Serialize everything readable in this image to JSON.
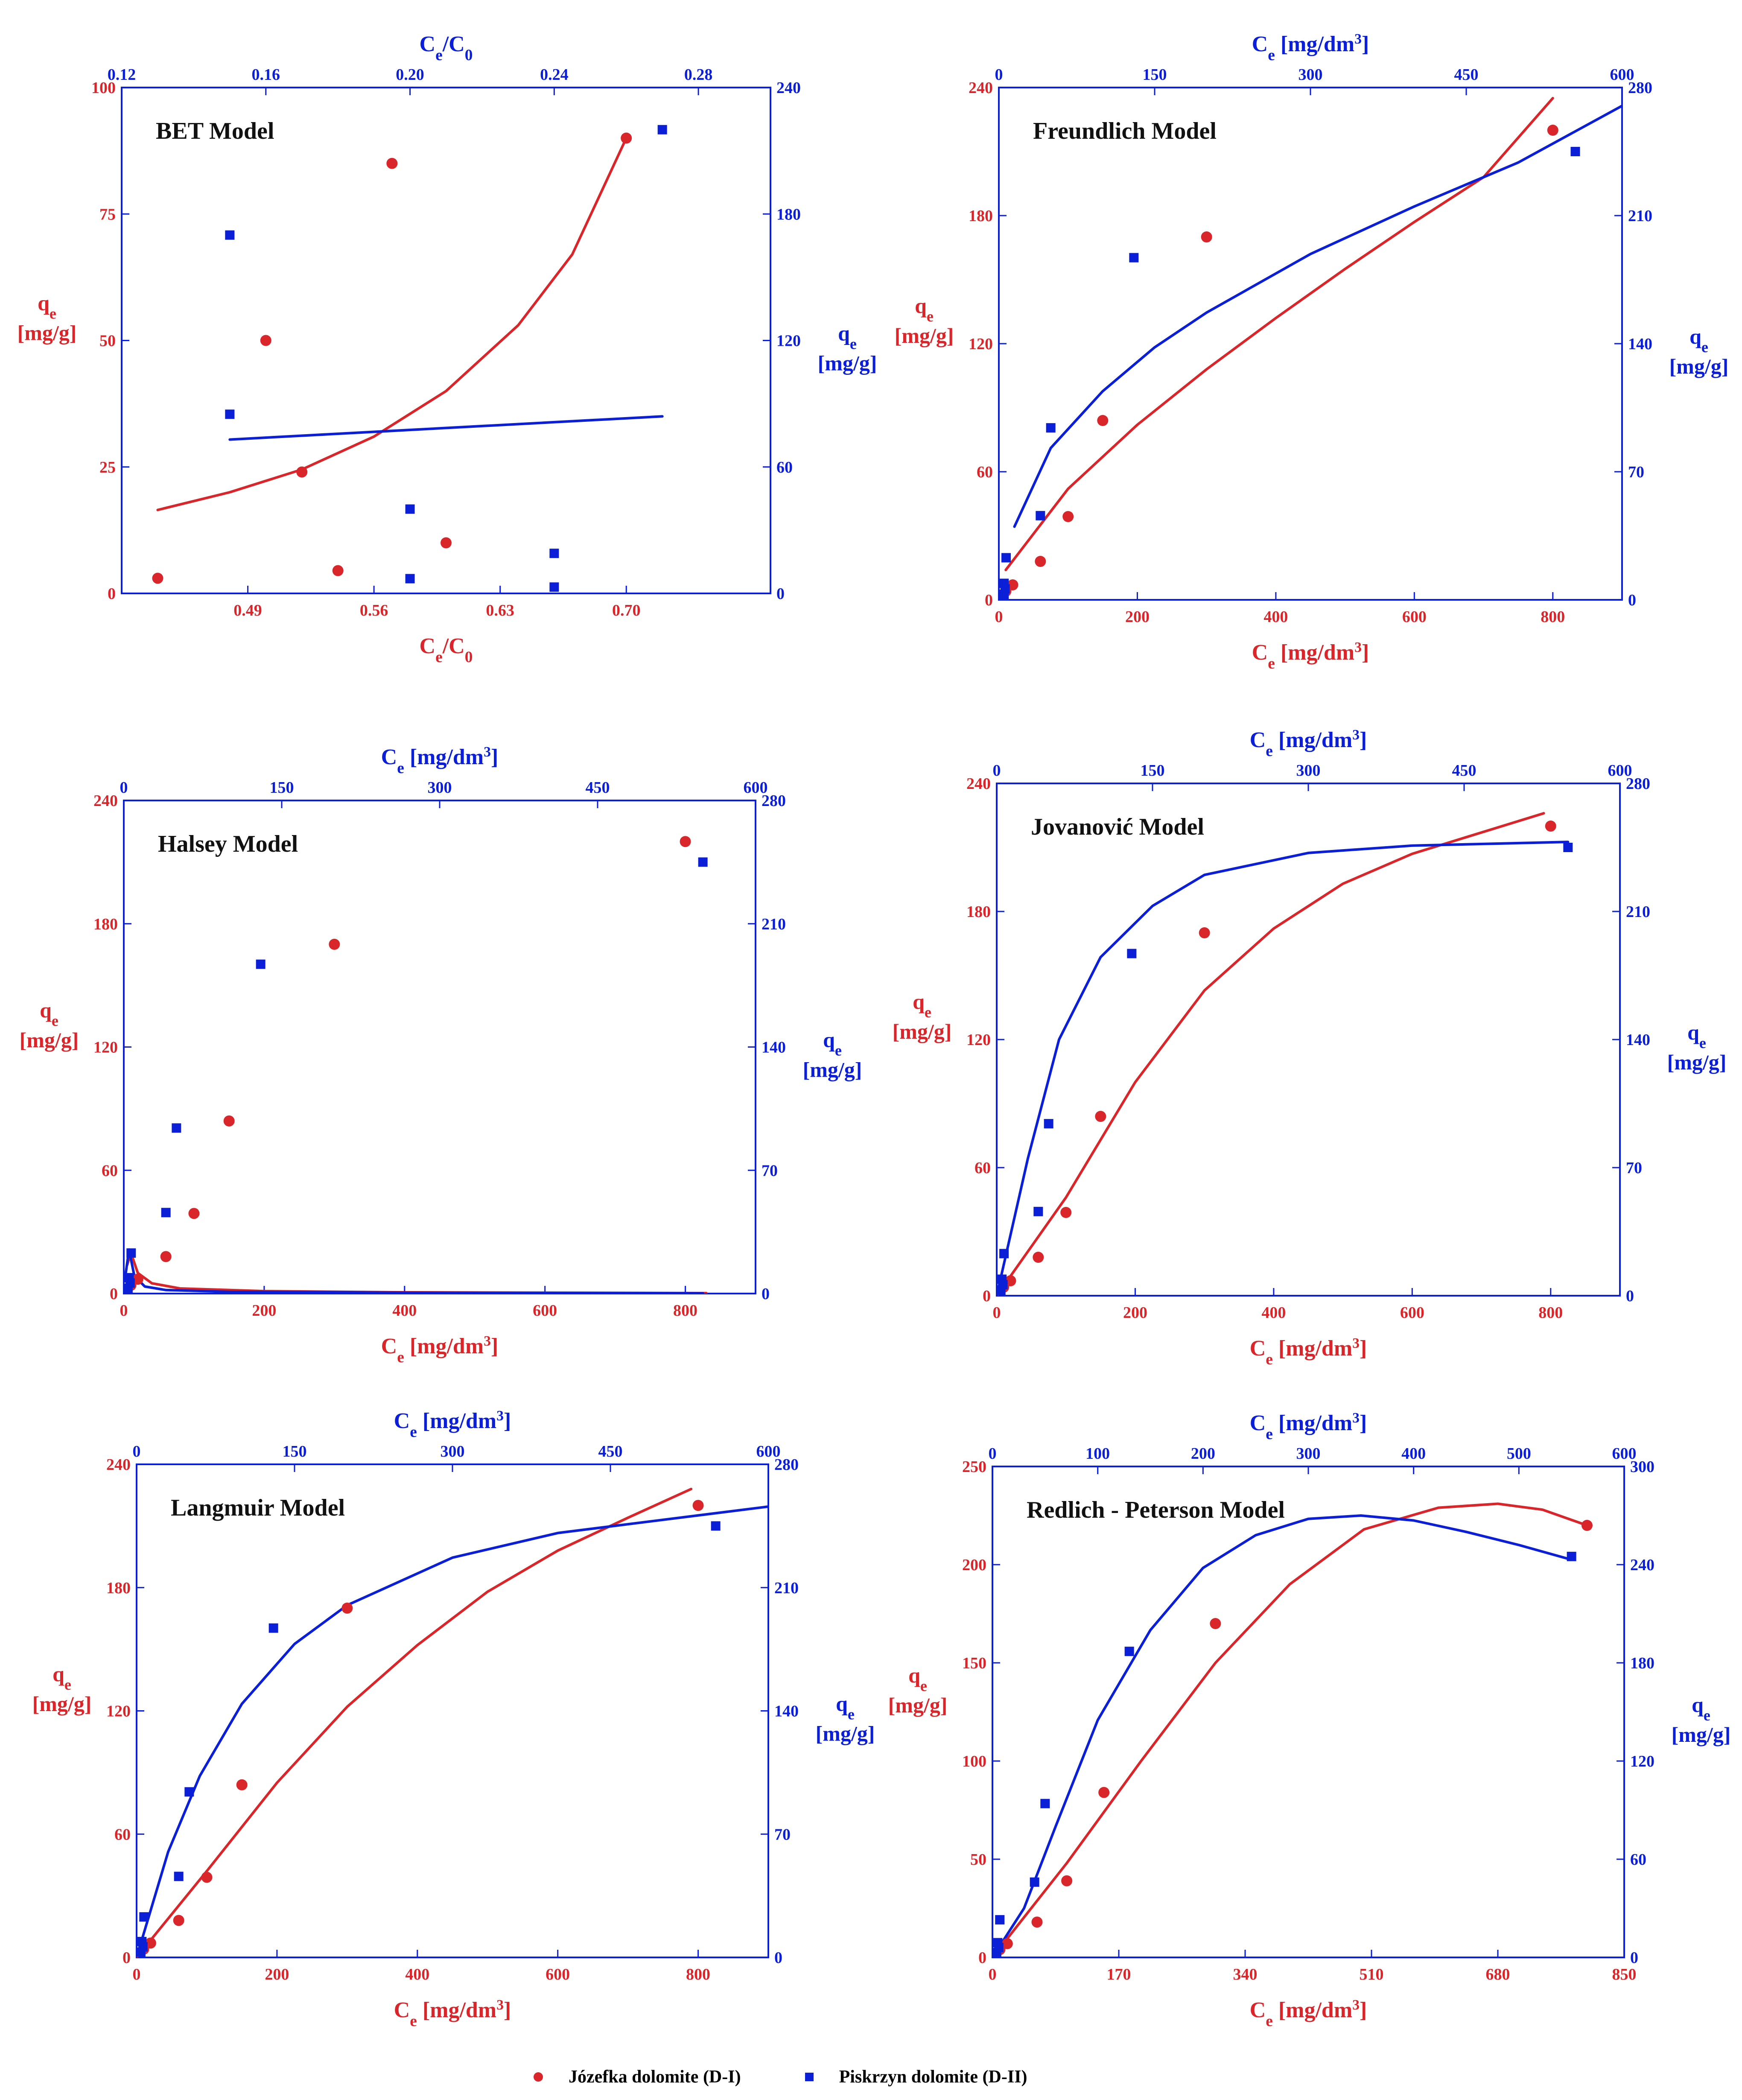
{
  "colors": {
    "red": "#d9262b",
    "blue": "#0b1fd6",
    "frame": "#0b1fd6"
  },
  "legend": {
    "series_1": "Józefka dolomite (D-I)",
    "series_2": "Piskrzyn dolomite (D-II)"
  },
  "chart_data": [
    {
      "id": "bet",
      "type": "scatter",
      "title": "BET Model",
      "xlabel_bottom": "Ce/C0",
      "xlabel_top": "Ce/C0",
      "ylabel_left": "qe [mg/g]",
      "ylabel_right": "qe [mg/g]",
      "x_bottom": {
        "range": [
          0.42,
          0.78
        ],
        "ticks": [
          0.49,
          0.56,
          0.63,
          0.7
        ],
        "tick_labels": [
          "0.49",
          "0.56",
          "0.63",
          "0.70"
        ]
      },
      "x_top": {
        "range": [
          0.12,
          0.3
        ],
        "ticks": [
          0.12,
          0.16,
          0.2,
          0.24,
          0.28
        ],
        "tick_labels": [
          "0.12",
          "0.16",
          "0.20",
          "0.24",
          "0.28"
        ]
      },
      "y_left": {
        "range": [
          0,
          100
        ],
        "ticks": [
          0,
          25,
          50,
          75,
          100
        ],
        "tick_labels": [
          "0",
          "25",
          "50",
          "75",
          "100"
        ]
      },
      "y_right": {
        "range": [
          0,
          240
        ],
        "ticks": [
          0,
          60,
          120,
          180,
          240
        ],
        "tick_labels": [
          "0",
          "60",
          "120",
          "180",
          "240"
        ]
      },
      "series": [
        {
          "name": "Józefka dolomite (D-I)",
          "axis": "bottom-left",
          "marker": "circle",
          "color": "#d9262b",
          "x": [
            0.44,
            0.5,
            0.52,
            0.54,
            0.57,
            0.6,
            0.7
          ],
          "y": [
            3,
            50,
            24,
            4.5,
            85,
            10,
            90
          ]
        },
        {
          "name": "Piskrzyn dolomite (D-II)",
          "axis": "top-right",
          "marker": "square",
          "color": "#0b1fd6",
          "x": [
            0.15,
            0.15,
            0.2,
            0.2,
            0.24,
            0.24,
            0.27
          ],
          "y": [
            170,
            85,
            40,
            7,
            19,
            3,
            220
          ]
        }
      ],
      "fits": [
        {
          "axis": "bottom-left",
          "color": "#d9262b",
          "x": [
            0.44,
            0.48,
            0.52,
            0.56,
            0.6,
            0.64,
            0.67,
            0.7
          ],
          "y": [
            16.5,
            20,
            24.5,
            31,
            40,
            53,
            67,
            90
          ]
        },
        {
          "axis": "top-right",
          "color": "#0b1fd6",
          "x": [
            0.15,
            0.27
          ],
          "y": [
            73,
            84
          ]
        }
      ]
    },
    {
      "id": "freundlich",
      "type": "scatter",
      "title": "Freundlich Model",
      "xlabel_bottom": "Ce [mg/dm3]",
      "xlabel_top": "Ce [mg/dm3]",
      "ylabel_left": "qe [mg/g]",
      "ylabel_right": "qe [mg/g]",
      "x_bottom": {
        "range": [
          0,
          900
        ],
        "ticks": [
          0,
          200,
          400,
          600,
          800
        ],
        "tick_labels": [
          "0",
          "200",
          "400",
          "600",
          "800"
        ]
      },
      "x_top": {
        "range": [
          0,
          600
        ],
        "ticks": [
          0,
          150,
          300,
          450,
          600
        ],
        "tick_labels": [
          "0",
          "150",
          "300",
          "450",
          "600"
        ]
      },
      "y_left": {
        "range": [
          0,
          240
        ],
        "ticks": [
          0,
          60,
          120,
          180,
          240
        ],
        "tick_labels": [
          "0",
          "60",
          "120",
          "180",
          "240"
        ]
      },
      "y_right": {
        "range": [
          0,
          280
        ],
        "ticks": [
          0,
          70,
          140,
          210,
          280
        ],
        "tick_labels": [
          "0",
          "70",
          "140",
          "210",
          "280"
        ]
      },
      "series": [
        {
          "name": "Józefka dolomite (D-I)",
          "axis": "bottom-left",
          "marker": "circle",
          "color": "#d9262b",
          "x": [
            10,
            20,
            60,
            100,
            150,
            300,
            800
          ],
          "y": [
            4,
            7,
            18,
            39,
            84,
            170,
            220
          ]
        },
        {
          "name": "Piskrzyn dolomite (D-II)",
          "axis": "top-right",
          "marker": "square",
          "color": "#0b1fd6",
          "x": [
            5,
            5,
            6,
            7,
            40,
            50,
            130,
            555
          ],
          "y": [
            3,
            9,
            6,
            23,
            46,
            94,
            187,
            245
          ]
        }
      ],
      "fits": [
        {
          "axis": "bottom-left",
          "color": "#d9262b",
          "x": [
            10,
            100,
            200,
            300,
            400,
            500,
            600,
            700,
            800
          ],
          "y": [
            14,
            52,
            82,
            108,
            132,
            155,
            177,
            198,
            235
          ]
        },
        {
          "axis": "top-right",
          "color": "#0b1fd6",
          "x": [
            15,
            50,
            100,
            150,
            200,
            300,
            400,
            500,
            600
          ],
          "y": [
            40,
            83,
            114,
            138,
            157,
            189,
            215,
            239,
            270
          ]
        }
      ]
    },
    {
      "id": "halsey",
      "type": "scatter",
      "title": "Halsey Model",
      "xlabel_bottom": "Ce [mg/dm3]",
      "xlabel_top": "Ce [mg/dm3]",
      "ylabel_left": "qe [mg/g]",
      "ylabel_right": "qe [mg/g]",
      "x_bottom": {
        "range": [
          0,
          900
        ],
        "ticks": [
          0,
          200,
          400,
          600,
          800
        ],
        "tick_labels": [
          "0",
          "200",
          "400",
          "600",
          "800"
        ]
      },
      "x_top": {
        "range": [
          0,
          600
        ],
        "ticks": [
          0,
          150,
          300,
          450,
          600
        ],
        "tick_labels": [
          "0",
          "150",
          "300",
          "450",
          "600"
        ]
      },
      "y_left": {
        "range": [
          0,
          240
        ],
        "ticks": [
          0,
          60,
          120,
          180,
          240
        ],
        "tick_labels": [
          "0",
          "60",
          "120",
          "180",
          "240"
        ]
      },
      "y_right": {
        "range": [
          0,
          280
        ],
        "ticks": [
          0,
          70,
          140,
          210,
          280
        ],
        "tick_labels": [
          "0",
          "70",
          "140",
          "210",
          "280"
        ]
      },
      "series": [
        {
          "name": "Józefka dolomite (D-I)",
          "axis": "bottom-left",
          "marker": "circle",
          "color": "#d9262b",
          "x": [
            10,
            20,
            60,
            100,
            150,
            300,
            800
          ],
          "y": [
            4,
            7,
            18,
            39,
            84,
            170,
            220
          ]
        },
        {
          "name": "Piskrzyn dolomite (D-II)",
          "axis": "top-right",
          "marker": "square",
          "color": "#0b1fd6",
          "x": [
            4,
            5,
            6,
            7,
            40,
            50,
            130,
            550
          ],
          "y": [
            3,
            9,
            6,
            23,
            46,
            94,
            187,
            245
          ]
        }
      ],
      "fits": [
        {
          "axis": "bottom-left",
          "color": "#d9262b",
          "x": [
            5,
            10,
            20,
            40,
            80,
            200,
            400,
            830
          ],
          "y": [
            14,
            20,
            10,
            5,
            2.5,
            1.2,
            0.6,
            0.2
          ]
        },
        {
          "axis": "top-right",
          "color": "#0b1fd6",
          "x": [
            2,
            5,
            10,
            20,
            40,
            100,
            300,
            550
          ],
          "y": [
            12,
            25,
            10,
            4,
            2,
            1,
            0.4,
            0.2
          ]
        }
      ]
    },
    {
      "id": "jovanovic",
      "type": "scatter",
      "title": "Jovanović Model",
      "xlabel_bottom": "Ce [mg/dm3]",
      "xlabel_top": "Ce [mg/dm3]",
      "ylabel_left": "qe [mg/g]",
      "ylabel_right": "qe [mg/g]",
      "x_bottom": {
        "range": [
          0,
          900
        ],
        "ticks": [
          0,
          200,
          400,
          600,
          800
        ],
        "tick_labels": [
          "0",
          "200",
          "400",
          "600",
          "800"
        ]
      },
      "x_top": {
        "range": [
          0,
          600
        ],
        "ticks": [
          0,
          150,
          300,
          450,
          600
        ],
        "tick_labels": [
          "0",
          "150",
          "300",
          "450",
          "600"
        ]
      },
      "y_left": {
        "range": [
          0,
          240
        ],
        "ticks": [
          0,
          60,
          120,
          180,
          240
        ],
        "tick_labels": [
          "0",
          "60",
          "120",
          "180",
          "240"
        ]
      },
      "y_right": {
        "range": [
          0,
          280
        ],
        "ticks": [
          0,
          70,
          140,
          210,
          280
        ],
        "tick_labels": [
          "0",
          "70",
          "140",
          "210",
          "280"
        ]
      },
      "series": [
        {
          "name": "Józefka dolomite (D-I)",
          "axis": "bottom-left",
          "marker": "circle",
          "color": "#d9262b",
          "x": [
            10,
            20,
            60,
            100,
            150,
            300,
            800
          ],
          "y": [
            4,
            7,
            18,
            39,
            84,
            170,
            220
          ]
        },
        {
          "name": "Piskrzyn dolomite (D-II)",
          "axis": "top-right",
          "marker": "square",
          "color": "#0b1fd6",
          "x": [
            4,
            5,
            6,
            7,
            40,
            50,
            130,
            550
          ],
          "y": [
            3,
            9,
            6,
            23,
            46,
            94,
            187,
            245
          ]
        }
      ],
      "fits": [
        {
          "axis": "bottom-left",
          "color": "#d9262b",
          "x": [
            0,
            100,
            200,
            300,
            400,
            500,
            600,
            700,
            790
          ],
          "y": [
            0,
            46,
            100,
            143,
            172,
            193,
            207,
            217,
            226
          ]
        },
        {
          "axis": "top-right",
          "color": "#0b1fd6",
          "x": [
            0,
            30,
            60,
            100,
            150,
            200,
            300,
            400,
            550
          ],
          "y": [
            0,
            75,
            140,
            185,
            213,
            230,
            242,
            246,
            248
          ]
        }
      ]
    },
    {
      "id": "langmuir",
      "type": "scatter",
      "title": "Langmuir Model",
      "xlabel_bottom": "Ce [mg/dm3]",
      "xlabel_top": "Ce [mg/dm3]",
      "ylabel_left": "qe [mg/g]",
      "ylabel_right": "qe [mg/g]",
      "x_bottom": {
        "range": [
          0,
          900
        ],
        "ticks": [
          0,
          200,
          400,
          600,
          800
        ],
        "tick_labels": [
          "0",
          "200",
          "400",
          "600",
          "800"
        ]
      },
      "x_top": {
        "range": [
          0,
          600
        ],
        "ticks": [
          0,
          150,
          300,
          450,
          600
        ],
        "tick_labels": [
          "0",
          "150",
          "300",
          "450",
          "600"
        ]
      },
      "y_left": {
        "range": [
          0,
          240
        ],
        "ticks": [
          0,
          60,
          120,
          180,
          240
        ],
        "tick_labels": [
          "0",
          "60",
          "120",
          "180",
          "240"
        ]
      },
      "y_right": {
        "range": [
          0,
          280
        ],
        "ticks": [
          0,
          70,
          140,
          210,
          280
        ],
        "tick_labels": [
          "0",
          "70",
          "140",
          "210",
          "280"
        ]
      },
      "series": [
        {
          "name": "Józefka dolomite (D-I)",
          "axis": "bottom-left",
          "marker": "circle",
          "color": "#d9262b",
          "x": [
            10,
            20,
            60,
            100,
            150,
            300,
            800
          ],
          "y": [
            4,
            7,
            18,
            39,
            84,
            170,
            220
          ]
        },
        {
          "name": "Piskrzyn dolomite (D-II)",
          "axis": "top-right",
          "marker": "square",
          "color": "#0b1fd6",
          "x": [
            4,
            5,
            6,
            7,
            40,
            50,
            130,
            550
          ],
          "y": [
            3,
            9,
            6,
            23,
            46,
            94,
            187,
            245
          ]
        }
      ],
      "fits": [
        {
          "axis": "bottom-left",
          "color": "#d9262b",
          "x": [
            0,
            100,
            200,
            300,
            400,
            500,
            600,
            700,
            790
          ],
          "y": [
            0,
            42,
            85,
            122,
            152,
            178,
            198,
            214,
            228
          ]
        },
        {
          "axis": "top-right",
          "color": "#0b1fd6",
          "x": [
            5,
            30,
            60,
            100,
            150,
            200,
            300,
            400,
            600
          ],
          "y": [
            10,
            60,
            103,
            144,
            178,
            200,
            227,
            241,
            256
          ]
        }
      ]
    },
    {
      "id": "redlich",
      "type": "scatter",
      "title": "Redlich - Peterson Model",
      "xlabel_bottom": "Ce [mg/dm3]",
      "xlabel_top": "Ce [mg/dm3]",
      "ylabel_left": "qe [mg/g]",
      "ylabel_right": "qe [mg/g]",
      "x_bottom": {
        "range": [
          0,
          850
        ],
        "ticks": [
          0,
          170,
          340,
          510,
          680,
          850
        ],
        "tick_labels": [
          "0",
          "170",
          "340",
          "510",
          "680",
          "850"
        ]
      },
      "x_top": {
        "range": [
          0,
          600
        ],
        "ticks": [
          0,
          100,
          200,
          300,
          400,
          500,
          600
        ],
        "tick_labels": [
          "0",
          "100",
          "200",
          "300",
          "400",
          "500",
          "600"
        ]
      },
      "y_left": {
        "range": [
          0,
          250
        ],
        "ticks": [
          0,
          50,
          100,
          150,
          200,
          250
        ],
        "tick_labels": [
          "0",
          "50",
          "100",
          "150",
          "200",
          "250"
        ]
      },
      "y_right": {
        "range": [
          0,
          300
        ],
        "ticks": [
          0,
          60,
          120,
          180,
          240,
          300
        ],
        "tick_labels": [
          "0",
          "60",
          "120",
          "180",
          "240",
          "300"
        ]
      },
      "series": [
        {
          "name": "Józefka dolomite (D-I)",
          "axis": "bottom-left",
          "marker": "circle",
          "color": "#d9262b",
          "x": [
            10,
            20,
            60,
            100,
            150,
            300,
            800
          ],
          "y": [
            4,
            7,
            18,
            39,
            84,
            170,
            220
          ]
        },
        {
          "name": "Piskrzyn dolomite (D-II)",
          "axis": "top-right",
          "marker": "square",
          "color": "#0b1fd6",
          "x": [
            4,
            5,
            6,
            7,
            40,
            50,
            130,
            550
          ],
          "y": [
            3,
            9,
            6,
            23,
            46,
            94,
            187,
            245
          ]
        }
      ],
      "fits": [
        {
          "axis": "bottom-left",
          "color": "#d9262b",
          "x": [
            0,
            100,
            200,
            300,
            400,
            500,
            600,
            680,
            740,
            800
          ],
          "y": [
            0,
            48,
            100,
            150,
            190,
            218,
            229,
            231,
            228,
            220
          ]
        },
        {
          "axis": "top-right",
          "color": "#0b1fd6",
          "x": [
            0,
            30,
            60,
            100,
            150,
            200,
            250,
            300,
            350,
            400,
            450,
            500,
            550
          ],
          "y": [
            0,
            30,
            80,
            145,
            200,
            238,
            258,
            268,
            270,
            267,
            260,
            252,
            243
          ]
        }
      ]
    }
  ]
}
